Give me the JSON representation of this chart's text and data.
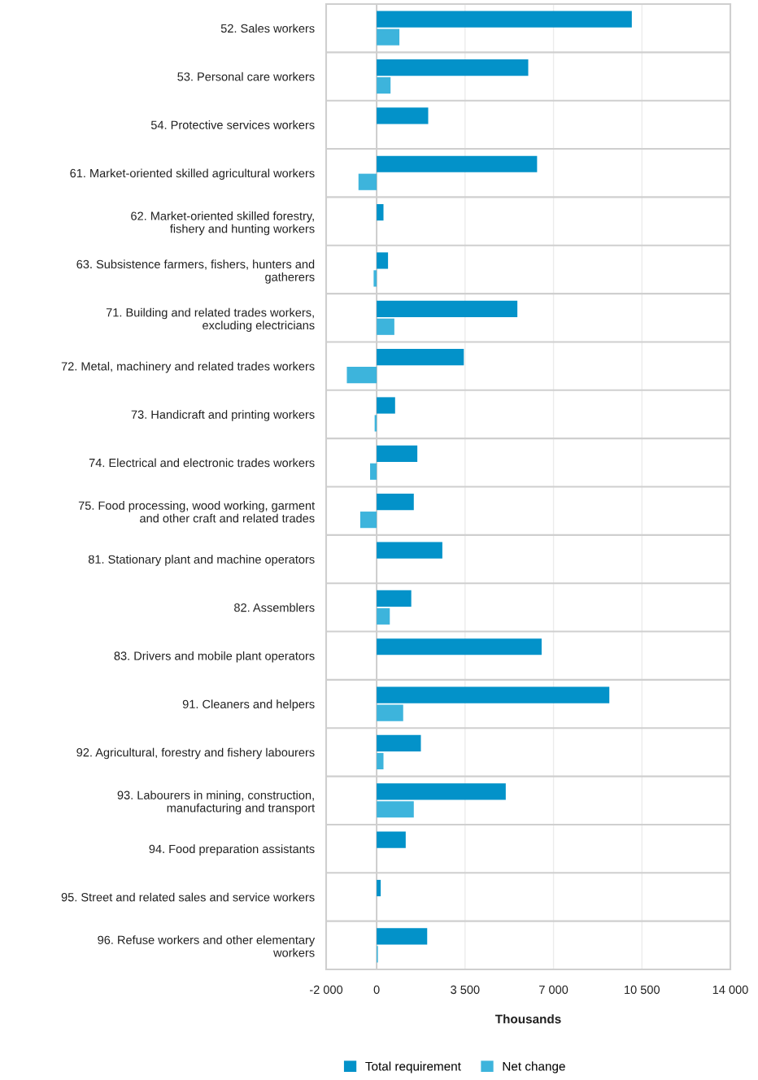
{
  "chart_data": {
    "type": "bar",
    "orientation": "horizontal",
    "xlabel": "Thousands",
    "categories": [
      "52. Sales workers",
      "53. Personal care workers",
      "54. Protective services workers",
      "61. Market-oriented skilled agricultural workers",
      "62. Market-oriented skilled forestry,\nfishery and hunting workers",
      "63. Subsistence farmers, fishers, hunters and\ngatherers",
      "71. Building and related trades workers,\nexcluding electricians",
      "72. Metal, machinery and related trades workers",
      "73. Handicraft and printing workers",
      "74. Electrical and electronic trades workers",
      "75. Food processing, wood working, garment\nand other craft and related trades",
      "81. Stationary plant and machine operators",
      "82. Assemblers",
      "83. Drivers and mobile plant operators",
      "91. Cleaners and helpers",
      "92. Agricultural, forestry and fishery labourers",
      "93. Labourers in mining, construction,\nmanufacturing and transport",
      "94. Food preparation assistants",
      "95. Street and related sales and service workers",
      "96. Refuse workers and other elementary\nworkers"
    ],
    "series": [
      {
        "name": "Total requirement",
        "color": "#0392c9",
        "values": [
          10100,
          6000,
          2040,
          6350,
          270,
          450,
          5570,
          3450,
          730,
          1610,
          1470,
          2600,
          1370,
          6530,
          9210,
          1750,
          5110,
          1150,
          160,
          2000
        ]
      },
      {
        "name": "Net change",
        "color": "#3db4dc",
        "values": [
          900,
          550,
          null,
          -720,
          null,
          -120,
          700,
          -1180,
          -80,
          -260,
          -650,
          null,
          520,
          null,
          1050,
          270,
          1470,
          null,
          null,
          50
        ]
      }
    ],
    "xlim": [
      -2000,
      14000
    ],
    "xticks": [
      {
        "value": -2000,
        "label": "-2 000"
      },
      0,
      {
        "value": 3500,
        "label": "3 500"
      },
      {
        "value": 7000,
        "label": "7 000"
      },
      {
        "value": 10500,
        "label": "10 500"
      },
      {
        "value": 14000,
        "label": "14 000"
      }
    ],
    "grid": true,
    "legend": "bottom"
  }
}
